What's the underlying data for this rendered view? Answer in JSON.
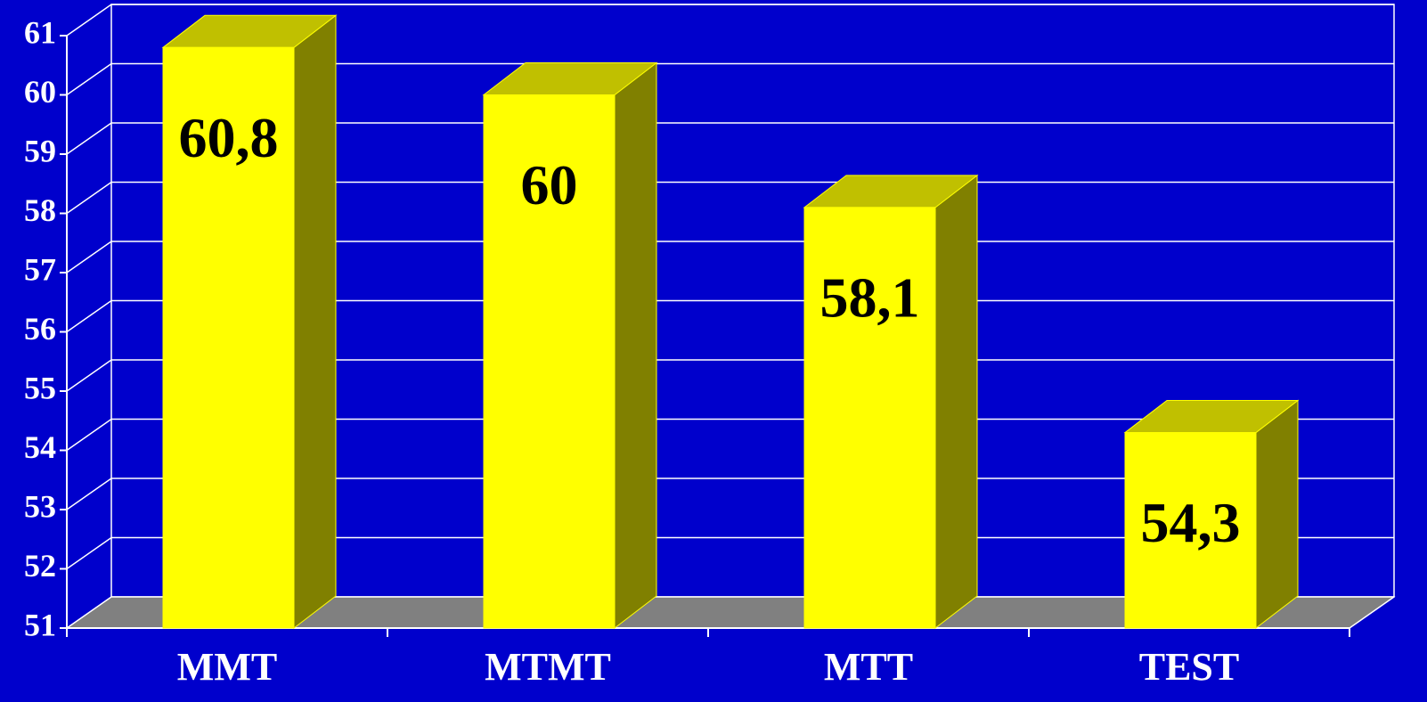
{
  "chart_data": {
    "type": "bar3d",
    "categories": [
      "MMT",
      "MTMT",
      "MTT",
      "TEST"
    ],
    "values": [
      60.8,
      60,
      58.1,
      54.3
    ],
    "value_labels": [
      "60,8",
      "60",
      "58,1",
      "54,3"
    ],
    "color": "#ffff00",
    "ylim": [
      51,
      61
    ],
    "yticks": [
      51,
      52,
      53,
      54,
      55,
      56,
      57,
      58,
      59,
      60,
      61
    ],
    "grid": true
  }
}
